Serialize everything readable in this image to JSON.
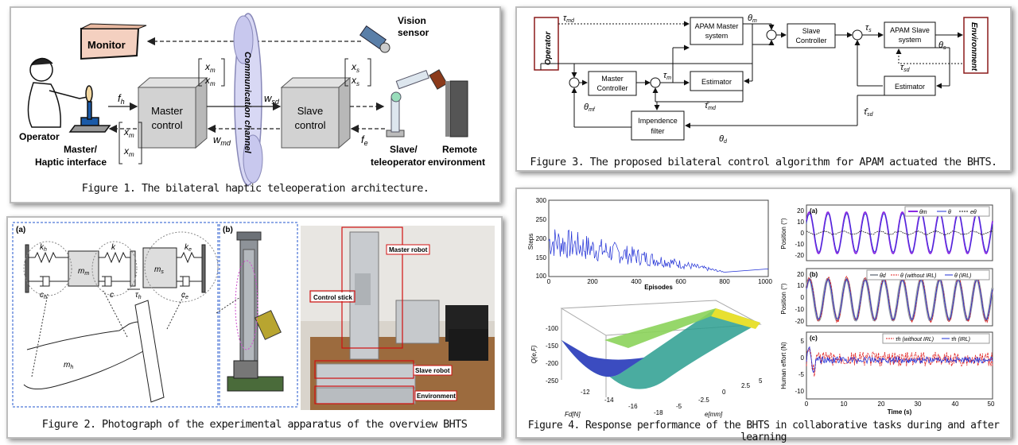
{
  "fig1": {
    "caption": "Figure 1. The bilateral haptic teleoperation architecture.",
    "monitor": "Monitor",
    "vision_sensor": [
      "Vision",
      "sensor"
    ],
    "operator": "Operator",
    "master_interface": [
      "Master/",
      "Haptic interface"
    ],
    "master_block": [
      "Master",
      "control"
    ],
    "channel": "Communication channel",
    "slave_block": [
      "Slave",
      "control"
    ],
    "slave_robot": [
      "Slave/",
      "teleoperator"
    ],
    "remote_env": [
      "Remote",
      "environment"
    ],
    "signals": {
      "fh": "f",
      "fh_sub": "h",
      "wsd": "w",
      "wsd_sub": "sd",
      "wmd": "w",
      "wmd_sub": "md",
      "fe": "f",
      "fe_sub": "e",
      "xm": "x",
      "xm_sub": "m",
      "xs": "x",
      "xs_sub": "s"
    }
  },
  "fig2": {
    "caption": "Figure 2. Photograph of the experimental apparatus of the overview BHTS",
    "label_a": "(a)",
    "label_b": "(b)",
    "mass_labels": [
      "m",
      "m",
      "m"
    ],
    "mass_subs": [
      "h",
      "m",
      "s"
    ],
    "spring_labels": [
      "k",
      "k",
      "k"
    ],
    "spring_subs": [
      "h",
      "",
      "e"
    ],
    "damper_labels": [
      "c",
      "c",
      "c"
    ],
    "damper_subs": [
      "h",
      "",
      "e"
    ],
    "tau_label": "τ",
    "tau_sub": "h",
    "photo_labels": [
      "Master robot",
      "Control stick",
      "Slave robot",
      "Environment"
    ]
  },
  "fig3": {
    "caption": "Figure 3. The proposed bilateral control algorithm for APAM actuated the BHTS.",
    "operator": "Operator",
    "environment": "Environment",
    "apam_master": [
      "APAM Master",
      "system"
    ],
    "slave_controller": [
      "Slave",
      "Controller"
    ],
    "apam_slave": [
      "APAM Slave",
      "system"
    ],
    "master_controller": [
      "Master",
      "Controller"
    ],
    "estimator": "Estimator",
    "estimator2": "Estimator",
    "impedance": [
      "Impendence",
      "filter"
    ],
    "symbols": {
      "tau_md": "τ",
      "theta_m": "θ",
      "tau_s": "τ",
      "theta_s": "θ",
      "tau_sd": "τ",
      "tau_m": "τ",
      "theta_mf": "θ",
      "theta_d": "θ",
      "tau_md_hat": "τ̂",
      "tau_sd_hat": "τ̂"
    }
  },
  "fig4": {
    "caption": "Figure 4. Response performance of the BHTS in collaborative tasks during and after learning",
    "learning_chart": {
      "ylabel": "Steps",
      "xlabel": "Episodes",
      "yticks": [
        "300",
        "250",
        "200",
        "150",
        "100"
      ],
      "xticks": [
        "0",
        "200",
        "400",
        "600",
        "800",
        "1000"
      ]
    },
    "surface": {
      "zlabel": "Q(e,F)",
      "xlabel": "Fd[N]",
      "ylabel": "e[mm]",
      "zticks": [
        "-100",
        "-150",
        "-200",
        "-250"
      ],
      "xticks": [
        "-12",
        "-14",
        "-16",
        "-18"
      ],
      "yticks": [
        "-5",
        "-2.5",
        "0",
        "2.5",
        "5"
      ]
    },
    "panel_a": {
      "label": "(a)",
      "ylabel": "Position (°)",
      "yticks": [
        "20",
        "10",
        "0",
        "-10",
        "-20"
      ],
      "legend": [
        "θm",
        "θ",
        "eθ"
      ]
    },
    "panel_b": {
      "label": "(b)",
      "ylabel": "Position (°)",
      "yticks": [
        "20",
        "10",
        "0",
        "-10",
        "-20"
      ],
      "legend": [
        "θd",
        "θ (without IRL)",
        "θ (IRL)"
      ]
    },
    "panel_c": {
      "label": "(c)",
      "ylabel": "Human effort (N)",
      "yticks": [
        "5",
        "0",
        "-5",
        "-10"
      ],
      "legend": [
        "τh (without IRL)",
        "τh (IRL)"
      ]
    },
    "time_axis": {
      "label": "Time (s)",
      "ticks": [
        "0",
        "10",
        "20",
        "30",
        "40",
        "50"
      ]
    }
  },
  "colors": {
    "blue": "#1f2fd6",
    "purple": "#8a2be2",
    "red": "#e02020",
    "darkred": "#8b1a1a"
  }
}
